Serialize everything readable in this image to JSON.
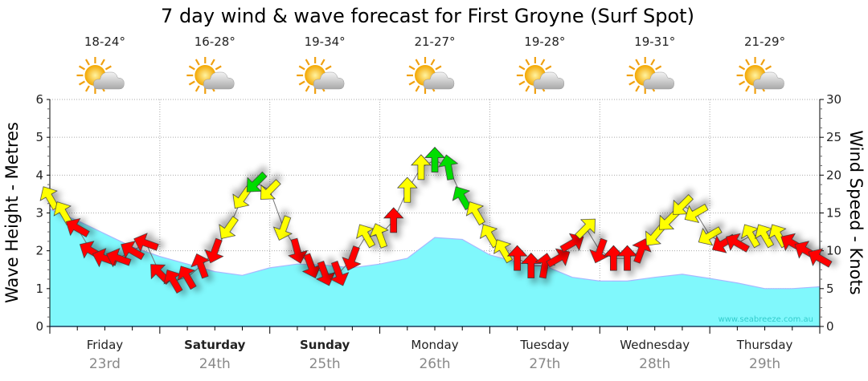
{
  "chart_data": {
    "type": "area",
    "title": "7 day wind & wave forecast for First Groyne (Surf Spot)",
    "ylabel": "Wave Height - Metres",
    "y2label": "Wind Speed - Knots",
    "ylim": [
      0,
      6
    ],
    "y2lim": [
      0,
      30
    ],
    "yticks": [
      "0",
      "1",
      "2",
      "3",
      "4",
      "5",
      "6"
    ],
    "y2ticks": [
      "0",
      "5",
      "10",
      "15",
      "20",
      "25",
      "30"
    ],
    "grid": true,
    "watermark": "www.seabreeze.com.au",
    "days": [
      {
        "name": "Friday",
        "date": "23rd",
        "bold": false,
        "temp": "18-24°"
      },
      {
        "name": "Saturday",
        "date": "24th",
        "bold": true,
        "temp": "16-28°"
      },
      {
        "name": "Sunday",
        "date": "25th",
        "bold": true,
        "temp": "19-34°"
      },
      {
        "name": "Monday",
        "date": "26th",
        "bold": false,
        "temp": "21-27°"
      },
      {
        "name": "Tuesday",
        "date": "27th",
        "bold": false,
        "temp": "19-28°"
      },
      {
        "name": "Wednesday",
        "date": "28th",
        "bold": false,
        "temp": "19-31°"
      },
      {
        "name": "Thursday",
        "date": "29th",
        "bold": false,
        "temp": "21-29°"
      }
    ],
    "weather_icon": "partly-cloudy-icon",
    "wave_series": {
      "name": "Wave Height",
      "unit": "m",
      "interval_hours": 6,
      "color": "#80f8fc",
      "values": [
        3.1,
        2.8,
        2.45,
        2.1,
        1.85,
        1.65,
        1.45,
        1.35,
        1.55,
        1.65,
        1.62,
        1.55,
        1.65,
        1.8,
        2.35,
        2.3,
        1.89,
        1.7,
        1.6,
        1.3,
        1.2,
        1.2,
        1.3,
        1.38,
        1.27,
        1.15,
        1.0,
        1.0,
        1.05
      ]
    },
    "wind_series": {
      "name": "Wind Speed",
      "unit": "knots",
      "interval_hours": 3,
      "colors": {
        "red": "#ff0000",
        "yellow": "#ffff00",
        "green": "#00dd00"
      },
      "speeds": [
        17,
        15,
        13,
        10,
        9,
        9,
        10,
        11,
        7,
        6,
        6.5,
        8,
        10,
        13,
        17,
        19,
        18,
        13,
        10,
        8,
        7,
        7,
        9,
        12,
        12,
        14,
        18,
        21,
        22,
        21,
        17,
        15,
        12,
        10,
        9,
        8,
        8,
        9,
        11,
        13,
        10,
        9,
        9,
        10,
        12,
        14,
        16,
        15,
        12,
        11,
        11,
        12,
        12,
        12,
        11,
        10,
        9
      ],
      "directions_deg": [
        330,
        330,
        300,
        300,
        290,
        290,
        300,
        290,
        315,
        330,
        330,
        340,
        200,
        215,
        215,
        225,
        225,
        200,
        165,
        160,
        160,
        160,
        200,
        330,
        340,
        0,
        0,
        0,
        0,
        350,
        330,
        330,
        330,
        330,
        0,
        0,
        10,
        60,
        60,
        45,
        200,
        0,
        0,
        20,
        220,
        225,
        225,
        240,
        240,
        240,
        300,
        330,
        330,
        330,
        300,
        300,
        300
      ],
      "color_class": [
        "yellow",
        "yellow",
        "red",
        "red",
        "red",
        "red",
        "red",
        "red",
        "red",
        "red",
        "red",
        "red",
        "red",
        "yellow",
        "yellow",
        "green",
        "yellow",
        "yellow",
        "red",
        "red",
        "red",
        "red",
        "red",
        "yellow",
        "yellow",
        "red",
        "yellow",
        "yellow",
        "green",
        "green",
        "green",
        "yellow",
        "yellow",
        "yellow",
        "red",
        "red",
        "red",
        "red",
        "red",
        "yellow",
        "red",
        "red",
        "red",
        "red",
        "yellow",
        "yellow",
        "yellow",
        "yellow",
        "yellow",
        "red",
        "red",
        "yellow",
        "yellow",
        "yellow",
        "red",
        "red",
        "red"
      ]
    }
  }
}
